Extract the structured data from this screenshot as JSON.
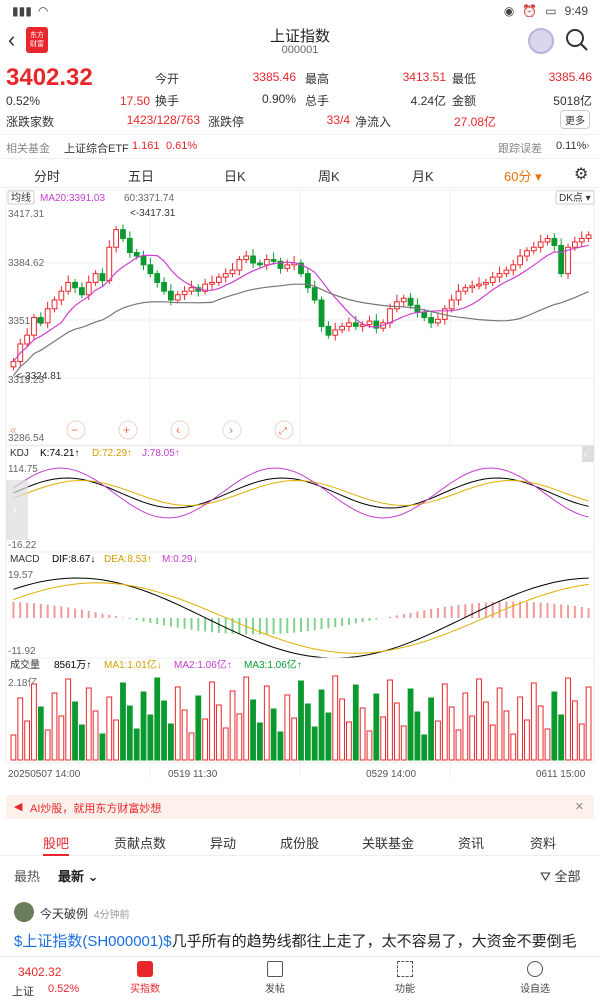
{
  "status_bar": {
    "time": "9:49"
  },
  "header": {
    "title": "上证指数",
    "code": "000001",
    "logo_text_1": "东方",
    "logo_text_2": "财富"
  },
  "quote": {
    "price": "3402.32",
    "change_pct": "0.52%",
    "change": "17.50",
    "adv_dec_label": "涨跌家数",
    "adv_dec_value": "1423/128/763",
    "limit_label": "涨跌停",
    "limit_value": "33/4",
    "net_inflow_label": "净流入",
    "net_inflow_value": "27.08亿",
    "open_label": "今开",
    "open_value": "3385.46",
    "high_label": "最高",
    "high_value": "3413.51",
    "low_label": "最低",
    "low_value": "3385.46",
    "turnover_label": "换手",
    "turnover_value": "0.90%",
    "total_label": "总手",
    "total_value": "4.24亿",
    "amount_label": "金额",
    "amount_value": "5018亿",
    "more_label": "更多"
  },
  "related": {
    "label": "相关基金",
    "fund_name": "上证综合ETF",
    "fund_price": "1.161",
    "fund_pct": "0.61%",
    "tracking_label": "跟踪误差",
    "tracking_value": "0.11%"
  },
  "period_tabs": [
    "分时",
    "五日",
    "日K",
    "周K",
    "月K",
    "60分"
  ],
  "active_period": "60分",
  "chart_data": {
    "type": "candlestick",
    "main": {
      "indicator_label": "均线",
      "ma20": "MA20:3391.03",
      "ma60": "60:3371.74",
      "adj_label": "DK点",
      "axis_max": "3417.31",
      "axis_mid": "3384.62",
      "axis_mid2": "3351.93",
      "axis_low": "3319.23",
      "axis_min": "3286.54",
      "high_marker": "<-3417.31",
      "low_marker": "<-3324.81",
      "ylim": [
        3286.54,
        3417.31
      ],
      "closes": [
        3330,
        3340,
        3345,
        3355,
        3352,
        3360,
        3365,
        3370,
        3375,
        3372,
        3368,
        3375,
        3380,
        3376,
        3395,
        3405,
        3400,
        3392,
        3390,
        3385,
        3380,
        3375,
        3370,
        3365,
        3368,
        3370,
        3372,
        3370,
        3374,
        3375,
        3378,
        3380,
        3382,
        3388,
        3390,
        3386,
        3385,
        3388,
        3387,
        3383,
        3385,
        3386,
        3380,
        3372,
        3365,
        3350,
        3345,
        3348,
        3350,
        3352,
        3350,
        3351,
        3353,
        3349,
        3352,
        3360,
        3364,
        3366,
        3362,
        3358,
        3355,
        3352,
        3354,
        3360,
        3365,
        3370,
        3372,
        3373,
        3374,
        3375,
        3378,
        3380,
        3382,
        3385,
        3390,
        3393,
        3395,
        3398,
        3400,
        3396,
        3380,
        3395,
        3398,
        3400,
        3402
      ]
    },
    "kdj": {
      "label": "KDJ",
      "k": "K:74.21↑",
      "d": "D:72.29↑",
      "j": "J:78.05↑",
      "max": "114.75",
      "min": "-16.22"
    },
    "macd": {
      "label": "MACD",
      "dif": "DIF:8.67↓",
      "dea": "DEA:8.53↑",
      "m": "M:0.29↓",
      "max": "19.57",
      "min": "-11.92"
    },
    "volume": {
      "label": "成交量",
      "value": "8561万↑",
      "ma1": "MA1:1.01亿↓",
      "ma2": "MA2:1.06亿↑",
      "ma3": "MA3:1.06亿↑",
      "max": "2.18亿"
    },
    "x_labels": [
      "20250507 14:00",
      "0519 11:30",
      "0529 14:00",
      "0611 15:00"
    ]
  },
  "ai_bar": {
    "text": "AI炒股，就用东方财富妙想"
  },
  "sub_tabs": [
    "股吧",
    "贡献点数",
    "异动",
    "成份股",
    "关联基金",
    "资讯",
    "资料"
  ],
  "sort": {
    "hot": "最热",
    "new": "最新",
    "all": "全部"
  },
  "post": {
    "author": "今天破例",
    "time": "4分钟前",
    "link": "$上证指数(SH000001)$",
    "text": "几乎所有的趋势线都往上走了，太不容易了，大资金不要倒毛"
  },
  "bottom_nav": {
    "price": "3402.32",
    "name": "上证",
    "pct": "0.52%",
    "buy": "买指数",
    "post": "发帖",
    "func": "功能",
    "settings": "设自选"
  }
}
